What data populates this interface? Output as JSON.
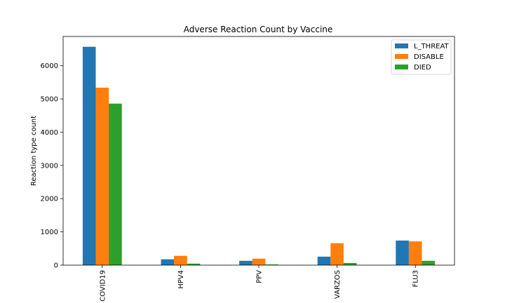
{
  "chart_data": {
    "type": "bar",
    "title": "Adverse Reaction Count by Vaccine",
    "xlabel": "",
    "ylabel": "Reaction type count",
    "categories": [
      "COVID19",
      "HPV4",
      "PPV",
      "VARZOS",
      "FLU3"
    ],
    "series": [
      {
        "name": "L_THREAT",
        "color": "#1f77b4",
        "values": [
          6570,
          175,
          130,
          255,
          740
        ]
      },
      {
        "name": "DISABLE",
        "color": "#ff7f0e",
        "values": [
          5340,
          280,
          195,
          660,
          715
        ]
      },
      {
        "name": "DIED",
        "color": "#2ca02c",
        "values": [
          4860,
          45,
          20,
          65,
          130
        ]
      }
    ],
    "ylim": [
      0,
      6880
    ],
    "yticks": [
      0,
      1000,
      2000,
      3000,
      4000,
      5000,
      6000
    ],
    "grid": false,
    "legend": "top-right"
  }
}
